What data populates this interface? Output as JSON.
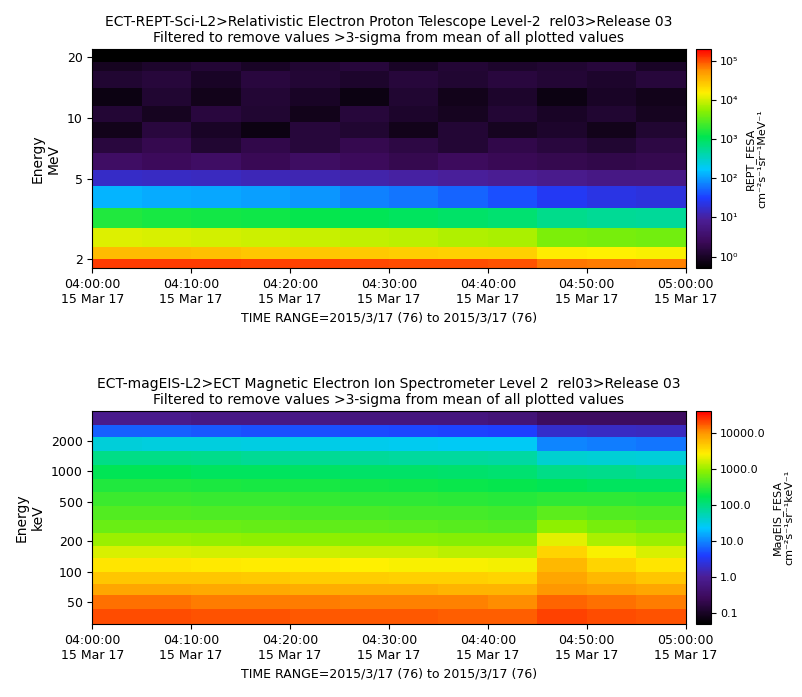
{
  "chart_data": [
    {
      "type": "heatmap",
      "title": "ECT-REPT-Sci-L2>Relativistic Electron Proton Telescope Level-2  rel03>Release 03\nFiltered to remove values >3-sigma from mean of all plotted values",
      "xlabel": "TIME RANGE=2015/3/17 (76) to 2015/3/17 (76)",
      "ylabel": "Energy\nMeV",
      "log": "y",
      "xlim": [
        0,
        60
      ],
      "xticks": [
        {
          "value": 0,
          "label": "04:00:00\n15 Mar 17"
        },
        {
          "value": 10,
          "label": "04:10:00\n15 Mar 17"
        },
        {
          "value": 20,
          "label": "04:20:00\n15 Mar 17"
        },
        {
          "value": 30,
          "label": "04:30:00\n15 Mar 17"
        },
        {
          "value": 40,
          "label": "04:40:00\n15 Mar 17"
        },
        {
          "value": 50,
          "label": "04:50:00\n15 Mar 17"
        },
        {
          "value": 60,
          "label": "05:00:00\n15 Mar 17"
        }
      ],
      "ylim": [
        1.8,
        22
      ],
      "yticks": [
        2,
        5,
        10,
        20
      ],
      "x_edges": [
        0,
        5,
        10,
        15,
        20,
        25,
        30,
        35,
        40,
        45,
        50,
        55,
        60
      ],
      "y_edges": [
        1.8,
        2.0,
        2.3,
        2.85,
        3.6,
        4.6,
        5.5,
        6.7,
        8.0,
        9.5,
        11.5,
        14.0,
        17.0,
        19.0,
        22.0
      ],
      "cells": [
        [
          120000,
          118000,
          115000,
          112000,
          110000,
          106000,
          102000,
          100000,
          96000,
          72000,
          68000,
          66000
        ],
        [
          32000,
          31000,
          30000,
          28000,
          27000,
          26000,
          25000,
          24000,
          23000,
          16000,
          15000,
          14500
        ],
        [
          11000,
          10500,
          10000,
          9500,
          9000,
          8500,
          8000,
          7500,
          7000,
          4500,
          4200,
          4000
        ],
        [
          1600,
          1500,
          1400,
          1300,
          1200,
          1100,
          1000,
          900,
          800,
          600,
          550,
          500
        ],
        [
          130,
          120,
          110,
          100,
          90,
          70,
          60,
          50,
          40,
          28,
          22,
          20
        ],
        [
          16,
          15,
          14,
          13,
          12,
          11,
          10,
          9,
          8,
          7,
          6,
          6
        ],
        [
          3,
          2.5,
          3,
          2.2,
          2.8,
          2.4,
          2,
          2.6,
          2.2,
          2,
          1.8,
          2
        ],
        [
          1.5,
          2,
          1.2,
          1.8,
          1.4,
          2,
          1.6,
          1.3,
          1.8,
          1.5,
          1.2,
          1.6
        ],
        [
          0.8,
          1.5,
          1,
          0.7,
          1.4,
          1.2,
          0.8,
          1.3,
          0.9,
          1.1,
          0.8,
          1.2
        ],
        [
          1.3,
          0.9,
          1.5,
          1.2,
          0.8,
          1.4,
          1.1,
          0.9,
          1.3,
          1,
          1.2,
          0.9
        ],
        [
          0.7,
          1.2,
          0.8,
          1.3,
          1,
          0.7,
          1.2,
          0.8,
          1.1,
          0.7,
          1,
          0.8
        ],
        [
          1.2,
          1.4,
          1,
          1.5,
          1.3,
          1.1,
          1.4,
          1.2,
          1.5,
          1.3,
          1.1,
          1.4
        ],
        [
          0.9,
          1.1,
          1.3,
          1,
          1.2,
          1.4,
          1,
          1.3,
          1.1,
          1.2,
          1.4,
          1
        ],
        [
          0.5,
          0.5,
          0.5,
          0.5,
          0.5,
          0.5,
          0.5,
          0.5,
          0.5,
          0.5,
          0.5,
          0.5
        ]
      ],
      "colorbar": {
        "label": "REPT_FESA\ncm⁻²s⁻¹sr⁻¹MeV⁻¹",
        "log": true,
        "lim": [
          0.5,
          200000
        ],
        "ticks": [
          {
            "value": 1,
            "label": "10⁰"
          },
          {
            "value": 10,
            "label": "10¹"
          },
          {
            "value": 100,
            "label": "10²"
          },
          {
            "value": 1000,
            "label": "10³"
          },
          {
            "value": 10000,
            "label": "10⁴"
          },
          {
            "value": 100000,
            "label": "10⁵"
          }
        ]
      }
    },
    {
      "type": "heatmap",
      "title": "ECT-magEIS-L2>ECT Magnetic Electron Ion Spectrometer Level 2  rel03>Release 03\nFiltered to remove values >3-sigma from mean of all plotted values",
      "xlabel": "TIME RANGE=2015/3/17 (76) to 2015/3/17 (76)",
      "ylabel": "Energy\nkeV",
      "log": "y",
      "xlim": [
        0,
        60
      ],
      "xticks": [
        {
          "value": 0,
          "label": "04:00:00\n15 Mar 17"
        },
        {
          "value": 10,
          "label": "04:10:00\n15 Mar 17"
        },
        {
          "value": 20,
          "label": "04:20:00\n15 Mar 17"
        },
        {
          "value": 30,
          "label": "04:30:00\n15 Mar 17"
        },
        {
          "value": 40,
          "label": "04:40:00\n15 Mar 17"
        },
        {
          "value": 50,
          "label": "04:50:00\n15 Mar 17"
        },
        {
          "value": 60,
          "label": "05:00:00\n15 Mar 17"
        }
      ],
      "ylim": [
        30,
        4000
      ],
      "yticks": [
        50,
        100,
        200,
        500,
        1000,
        2000
      ],
      "x_edges": [
        0,
        5,
        10,
        15,
        20,
        25,
        30,
        35,
        40,
        45,
        50,
        55,
        60
      ],
      "y_edges": [
        30,
        42,
        58,
        75,
        100,
        135,
        180,
        240,
        330,
        450,
        620,
        850,
        1150,
        1600,
        2200,
        2900,
        4000
      ],
      "cells": [
        [
          20000,
          20000,
          19000,
          19000,
          18000,
          18000,
          18000,
          17000,
          17000,
          22000,
          20000,
          19000
        ],
        [
          14000,
          14000,
          13000,
          13000,
          13000,
          12000,
          12000,
          12000,
          11000,
          16000,
          14000,
          13000
        ],
        [
          8000,
          8000,
          7500,
          7500,
          7000,
          7000,
          7000,
          6500,
          6500,
          10000,
          9000,
          8000
        ],
        [
          5000,
          5000,
          4800,
          4700,
          4500,
          4500,
          4300,
          4200,
          4000,
          8000,
          6000,
          5000
        ],
        [
          3000,
          3000,
          2900,
          2800,
          2700,
          2600,
          2500,
          2400,
          2300,
          6000,
          4000,
          3000
        ],
        [
          1800,
          1800,
          1700,
          1700,
          1600,
          1500,
          1500,
          1400,
          1400,
          4000,
          2500,
          1800
        ],
        [
          1000,
          1000,
          950,
          900,
          900,
          850,
          850,
          800,
          800,
          2000,
          1200,
          1000
        ],
        [
          600,
          600,
          580,
          560,
          540,
          520,
          500,
          480,
          460,
          900,
          700,
          600
        ],
        [
          450,
          440,
          430,
          420,
          410,
          400,
          390,
          380,
          370,
          500,
          450,
          420
        ],
        [
          350,
          340,
          330,
          320,
          310,
          300,
          290,
          280,
          270,
          300,
          290,
          280
        ],
        [
          250,
          250,
          240,
          230,
          220,
          210,
          200,
          190,
          180,
          160,
          150,
          150
        ],
        [
          160,
          160,
          150,
          145,
          140,
          135,
          130,
          125,
          120,
          90,
          85,
          80
        ],
        [
          90,
          90,
          85,
          80,
          78,
          75,
          72,
          70,
          65,
          40,
          38,
          35
        ],
        [
          35,
          34,
          33,
          32,
          30,
          28,
          27,
          26,
          25,
          10,
          9,
          8
        ],
        [
          6,
          6,
          5.5,
          5,
          5,
          4.8,
          4.5,
          4.2,
          4,
          2,
          1.8,
          1.7
        ],
        [
          0.8,
          0.8,
          0.7,
          0.7,
          0.7,
          0.6,
          0.6,
          0.6,
          0.5,
          0.3,
          0.3,
          0.3
        ]
      ],
      "colorbar": {
        "label": "MagEIS_FESA\ncm⁻²s⁻¹sr⁻¹keV⁻¹",
        "log": true,
        "lim": [
          0.05,
          40000
        ],
        "ticks": [
          0.1,
          {
            "value": 1,
            "label": "1.0"
          },
          {
            "value": 10,
            "label": "10.0"
          },
          {
            "value": 100,
            "label": "100.0"
          },
          {
            "value": 1000,
            "label": "1000.0"
          },
          {
            "value": 10000,
            "label": "10000.0"
          }
        ]
      }
    }
  ]
}
